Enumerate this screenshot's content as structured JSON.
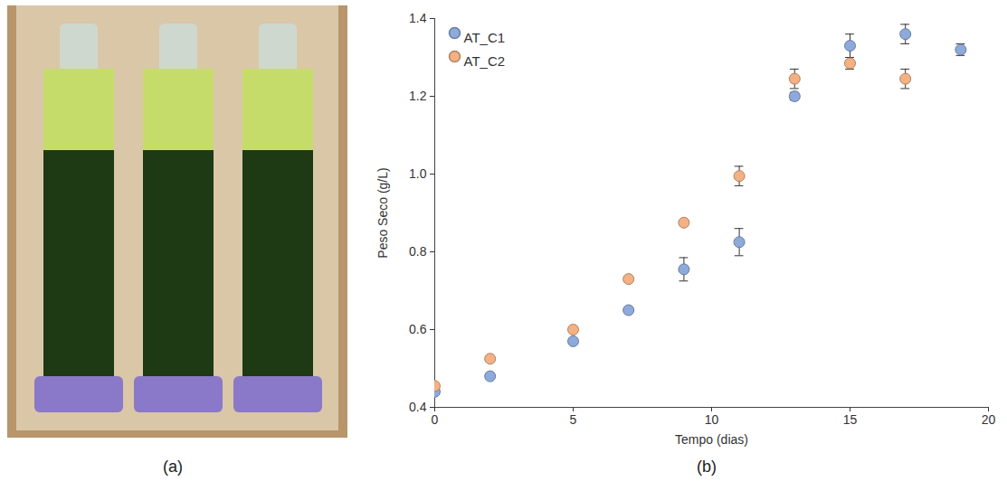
{
  "chart_data": {
    "type": "scatter",
    "xlabel": "Tempo (dias)",
    "ylabel": "Peso Seco (g/L)",
    "xlim": [
      0,
      20
    ],
    "xticks": [
      0,
      5,
      10,
      15,
      20
    ],
    "ylim": [
      0.4,
      1.4
    ],
    "yticks": [
      0.4,
      0.6,
      0.8,
      {
        "value": 1.0,
        "label": "1.0"
      },
      1.2,
      1.4
    ],
    "grid": false,
    "legend": "top-left",
    "marker": "circle",
    "series": [
      {
        "name": "AT_C1",
        "color": "#8eaadb",
        "x": [
          0,
          2,
          5,
          7,
          9,
          11,
          13,
          15,
          17,
          19
        ],
        "values": [
          0.44,
          0.48,
          0.57,
          0.65,
          0.755,
          0.825,
          1.2,
          1.33,
          1.36,
          1.32
        ],
        "error": [
          0.005,
          0.005,
          0.005,
          0.005,
          0.03,
          0.035,
          0.01,
          0.03,
          0.025,
          0.015
        ]
      },
      {
        "name": "AT_C2",
        "color": "#f4b183",
        "x": [
          0,
          2,
          5,
          7,
          9,
          11,
          13,
          15,
          17
        ],
        "values": [
          0.455,
          0.525,
          0.6,
          0.73,
          0.875,
          0.995,
          1.245,
          1.285,
          1.245
        ],
        "error": [
          0.005,
          0.005,
          0.005,
          0.005,
          0.005,
          0.025,
          0.025,
          0.015,
          0.025
        ]
      }
    ]
  },
  "panel_labels": [
    "(a)",
    "(b)"
  ]
}
